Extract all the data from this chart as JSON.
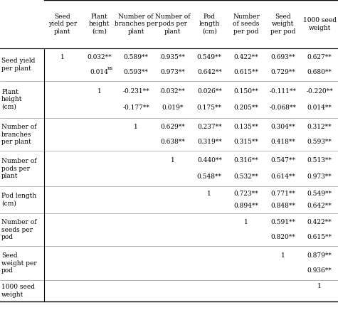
{
  "col_headers": [
    "Seed\nyield per\nplant",
    "Plant\nheight\n(cm)",
    "Number of\nbranches per\nplant",
    "Number of\npods per\nplant",
    "Pod\nlength\n(cm)",
    "Number\nof seeds\nper pod",
    "Seed\nweight\nper pod",
    "1000 seed\nweight"
  ],
  "row_headers": [
    "Seed yield\nper plant",
    "Plant\nheight\n(cm)",
    "Number of\nbranches\nper plant",
    "Number of\npods per\nplant",
    "Pod length\n(cm)",
    "Number of\nseeds per\npod",
    "Seed\nweight per\npod",
    "1000 seed\nweight"
  ],
  "upper_rows": [
    [
      "1",
      "0.032**",
      "0.589**",
      "0.935**",
      "0.549**",
      "0.422**",
      "0.693**",
      "0.627**"
    ],
    [
      "",
      "1",
      "-0.231**",
      "0.032**",
      "0.026**",
      "0.150**",
      "-0.111**",
      "-0.220**"
    ],
    [
      "",
      "",
      "1",
      "0.629**",
      "0.237**",
      "0.135**",
      "0.304**",
      "0.312**"
    ],
    [
      "",
      "",
      "",
      "1",
      "0.440**",
      "0.316**",
      "0.547**",
      "0.513**"
    ],
    [
      "",
      "",
      "",
      "",
      "1",
      "0.723**",
      "0.771**",
      "0.549**"
    ],
    [
      "",
      "",
      "",
      "",
      "",
      "1",
      "0.591**",
      "0.422**"
    ],
    [
      "",
      "",
      "",
      "",
      "",
      "",
      "1",
      "0.879**"
    ],
    [
      "",
      "",
      "",
      "",
      "",
      "",
      "",
      "1"
    ]
  ],
  "lower_rows": [
    [
      "",
      "0.014ns",
      "0.593**",
      "0.973**",
      "0.642**",
      "0.615**",
      "0.729**",
      "0.680**"
    ],
    [
      "",
      "",
      "-0.177**",
      "0.019*",
      "0.175**",
      "0.205**",
      "-0.068**",
      "0.014**"
    ],
    [
      "",
      "",
      "",
      "0.638**",
      "0.319**",
      "0.315**",
      "0.418**",
      "0.593**"
    ],
    [
      "",
      "",
      "",
      "",
      "0.548**",
      "0.532**",
      "0.614**",
      "0.973**"
    ],
    [
      "",
      "",
      "",
      "",
      "",
      "0.894**",
      "0.848**",
      "0.642**"
    ],
    [
      "",
      "",
      "",
      "",
      "",
      "",
      "0.820**",
      "0.615**"
    ],
    [
      "",
      "",
      "",
      "",
      "",
      "",
      "",
      "0.936**"
    ],
    [
      "",
      "",
      "",
      "",
      "",
      "",
      "",
      ""
    ]
  ],
  "background_color": "#ffffff",
  "font_size": 6.5,
  "header_font_size": 6.5
}
